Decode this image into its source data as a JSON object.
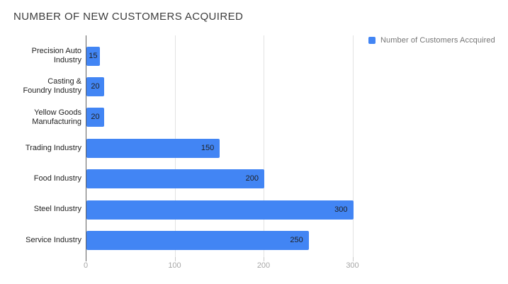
{
  "title": "NUMBER OF NEW CUSTOMERS ACQUIRED",
  "legend": {
    "label": "Number of Customers Accquired"
  },
  "colors": {
    "bar": "#4285F4",
    "gridline": "#e3e3e3",
    "axis": "#616161",
    "tick_label": "#a6a6a6",
    "legend_text": "#757575",
    "title_text": "#3c3c3c",
    "category_text": "#1f1f1f",
    "value_text": "#1f1f1f",
    "background": "#ffffff"
  },
  "chart_data": {
    "type": "bar",
    "orientation": "horizontal",
    "title": "NUMBER OF NEW CUSTOMERS ACQUIRED",
    "categories": [
      "Precision Auto Industry",
      "Casting & Foundry Industry",
      "Yellow Goods Manufacturing",
      "Trading Industry",
      "Food Industry",
      "Steel Industry",
      "Service Industry"
    ],
    "category_display_labels": [
      "Precision Auto\nIndustry",
      "Casting &\nFoundry Industry",
      "Yellow Goods\nManufacturing",
      "Trading Industry",
      "Food Industry",
      "Steel Industry",
      "Service Industry"
    ],
    "series": [
      {
        "name": "Number of Customers Accquired",
        "values": [
          15,
          20,
          20,
          150,
          200,
          300,
          250
        ]
      }
    ],
    "value_labels_shown": true,
    "x_ticks": [
      0,
      100,
      200,
      300
    ],
    "xlim": [
      0,
      310
    ],
    "grid": true,
    "legend_position": "top-right"
  }
}
